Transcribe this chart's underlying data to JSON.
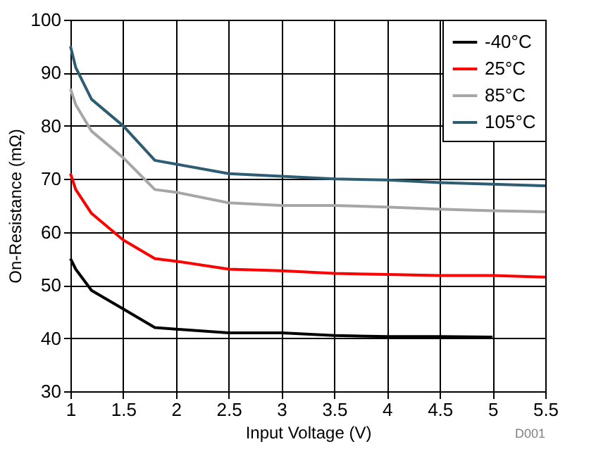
{
  "chart_data": {
    "type": "line",
    "xlabel": "Input Voltage (V)",
    "ylabel": "On-Resistance (mΩ)",
    "x": [
      1,
      1.05,
      1.2,
      1.5,
      1.8,
      2,
      2.5,
      3,
      3.5,
      4,
      4.5,
      5,
      5.5
    ],
    "series": [
      {
        "name": "-40°C",
        "color": "#000000",
        "values": [
          55,
          53,
          49,
          45.5,
          42,
          41.7,
          41,
          41,
          40.5,
          40.3,
          40.3,
          40.2,
          null
        ]
      },
      {
        "name": "25°C",
        "color": "#ff0000",
        "values": [
          71,
          68,
          63.5,
          58.5,
          55,
          54.5,
          53,
          52.7,
          52.2,
          52,
          51.8,
          51.8,
          51.5
        ]
      },
      {
        "name": "85°C",
        "color": "#a6a6a6",
        "values": [
          87,
          84,
          79,
          74,
          68,
          67.5,
          65.5,
          65,
          65,
          64.7,
          64.3,
          64,
          63.8
        ]
      },
      {
        "name": "105°C",
        "color": "#2e5c72",
        "values": [
          95,
          91,
          85,
          80,
          73.5,
          72.8,
          71,
          70.5,
          70,
          69.8,
          69.3,
          69,
          68.7
        ]
      }
    ],
    "xlim": [
      1,
      5.5
    ],
    "xticks": [
      1,
      1.5,
      2,
      2.5,
      3,
      3.5,
      4,
      4.5,
      5,
      5.5
    ],
    "ylim": [
      30,
      100
    ],
    "yticks": [
      30,
      40,
      50,
      60,
      70,
      80,
      90,
      100
    ],
    "grid": true,
    "legend": "top right",
    "marker": "none",
    "line_style": "solid",
    "annotations": [
      "D001"
    ]
  }
}
